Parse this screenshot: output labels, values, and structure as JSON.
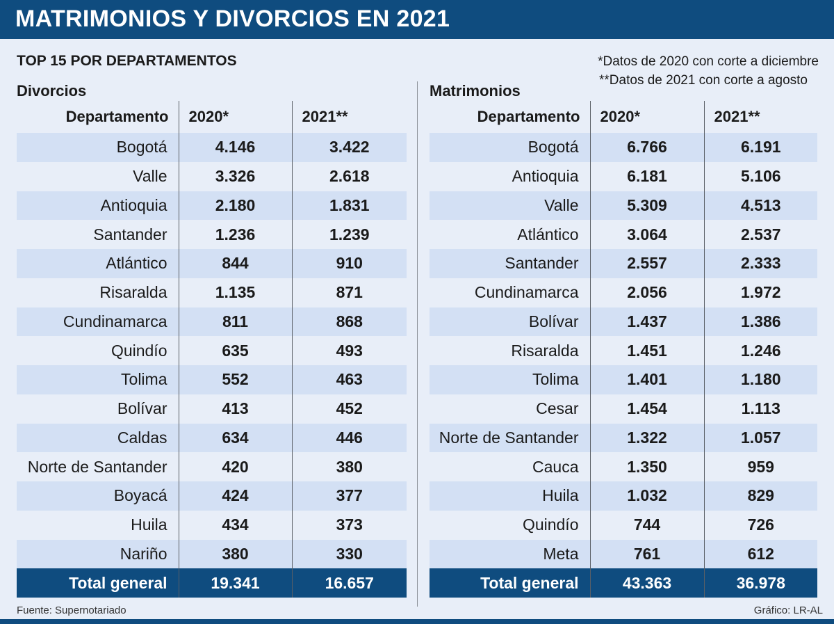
{
  "title": "MATRIMONIOS Y DIVORCIOS EN 2021",
  "subtitle": "TOP 15 POR DEPARTAMENTOS",
  "notes": {
    "note1": "*Datos de 2020 con corte a diciembre",
    "note2": "**Datos de 2021 con corte a agosto"
  },
  "divorcios": {
    "label": "Divorcios",
    "headers": [
      "Departamento",
      "2020*",
      "2021**"
    ],
    "rows": [
      [
        "Bogotá",
        "4.146",
        "3.422"
      ],
      [
        "Valle",
        "3.326",
        "2.618"
      ],
      [
        "Antioquia",
        "2.180",
        "1.831"
      ],
      [
        "Santander",
        "1.236",
        "1.239"
      ],
      [
        "Atlántico",
        "844",
        "910"
      ],
      [
        "Risaralda",
        "1.135",
        "871"
      ],
      [
        "Cundinamarca",
        "811",
        "868"
      ],
      [
        "Quindío ",
        "635",
        "493"
      ],
      [
        "Tolima",
        "552",
        "463"
      ],
      [
        "Bolívar",
        "413",
        "452"
      ],
      [
        "Caldas",
        "634",
        "446"
      ],
      [
        "Norte de Santander",
        "420",
        "380"
      ],
      [
        "Boyacá",
        "424",
        "377"
      ],
      [
        "Huila",
        "434",
        "373"
      ],
      [
        "Nariño",
        "380",
        "330"
      ]
    ],
    "total": [
      "Total general",
      "19.341",
      "16.657"
    ]
  },
  "matrimonios": {
    "label": "Matrimonios",
    "headers": [
      "Departamento",
      "2020*",
      "2021**"
    ],
    "rows": [
      [
        "Bogotá",
        "6.766",
        "6.191"
      ],
      [
        "Antioquia",
        "6.181",
        "5.106"
      ],
      [
        "Valle",
        "5.309",
        "4.513"
      ],
      [
        "Atlántico",
        "3.064",
        "2.537"
      ],
      [
        "Santander",
        "2.557",
        "2.333"
      ],
      [
        "Cundinamarca",
        "2.056",
        "1.972"
      ],
      [
        "Bolívar",
        "1.437",
        "1.386"
      ],
      [
        "Risaralda",
        "1.451",
        "1.246"
      ],
      [
        "Tolima",
        "1.401",
        "1.180"
      ],
      [
        "Cesar",
        "1.454",
        "1.113"
      ],
      [
        "Norte de Santander",
        "1.322",
        "1.057"
      ],
      [
        "Cauca",
        "1.350",
        "959"
      ],
      [
        "Huila",
        "1.032",
        "829"
      ],
      [
        "Quindío",
        "744",
        "726"
      ],
      [
        "Meta",
        "761",
        "612"
      ]
    ],
    "total": [
      "Total general",
      "43.363",
      "36.978"
    ]
  },
  "footer": {
    "source": "Fuente: Supernotariado",
    "credit": "Gráfico: LR-AL"
  },
  "colors": {
    "brand": "#0f4c7f",
    "row_alt": "#d3e0f4",
    "background": "#e8eef8"
  }
}
